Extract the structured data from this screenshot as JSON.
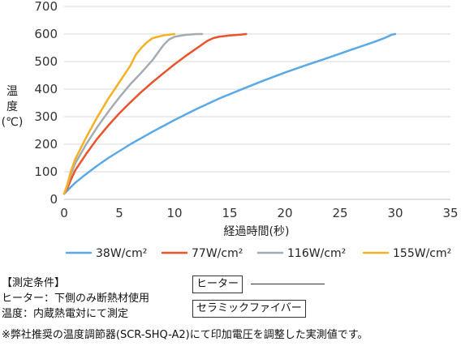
{
  "chart_data": {
    "type": "line",
    "xlabel": "経過時間(秒)",
    "ylabel": "温度(℃)",
    "ylabel_lines": [
      "温",
      "度",
      "(℃)"
    ],
    "xlim": [
      0,
      35
    ],
    "ylim": [
      0,
      700
    ],
    "xticks": [
      "0",
      "5",
      "10",
      "15",
      "20",
      "25",
      "30",
      "35"
    ],
    "yticks": [
      "0",
      "100",
      "200",
      "300",
      "400",
      "500",
      "600",
      "700"
    ],
    "grid": "horizontal",
    "legend": "bottom",
    "series": [
      {
        "name": "38W/cm²",
        "color": "#5aa9e6",
        "x": [
          0,
          0.5,
          1,
          2,
          3,
          4,
          5,
          6,
          8,
          10,
          12,
          14,
          16,
          18,
          20,
          22,
          24,
          26,
          28,
          29,
          29.7,
          30
        ],
        "y": [
          20,
          40,
          60,
          92,
          122,
          150,
          175,
          200,
          245,
          288,
          328,
          365,
          398,
          430,
          460,
          488,
          515,
          543,
          570,
          585,
          598,
          600
        ]
      },
      {
        "name": "77W/cm²",
        "color": "#e8542c",
        "x": [
          0,
          0.3,
          0.6,
          1,
          2,
          3,
          4,
          5,
          6,
          7,
          8,
          9,
          10,
          11,
          12,
          13,
          13.5,
          14,
          15,
          16,
          16.5
        ],
        "y": [
          20,
          40,
          70,
          105,
          165,
          220,
          268,
          312,
          352,
          390,
          425,
          458,
          490,
          520,
          548,
          576,
          585,
          590,
          595,
          598,
          600
        ]
      },
      {
        "name": "116W/cm²",
        "color": "#a2acb2",
        "x": [
          0,
          0.3,
          0.6,
          1,
          2,
          3,
          4,
          5,
          6,
          7,
          8,
          9,
          9.5,
          10,
          11,
          12,
          12.5
        ],
        "y": [
          20,
          50,
          90,
          130,
          200,
          262,
          318,
          370,
          418,
          460,
          505,
          560,
          580,
          590,
          597,
          600,
          600
        ]
      },
      {
        "name": "155W/cm²",
        "color": "#f5b023",
        "x": [
          0,
          0.3,
          0.6,
          1,
          2,
          3,
          4,
          5,
          6,
          6.5,
          7,
          7.5,
          8,
          8.5,
          9,
          9.5,
          10
        ],
        "y": [
          20,
          55,
          100,
          145,
          225,
          298,
          365,
          425,
          485,
          525,
          550,
          570,
          585,
          590,
          595,
          598,
          600
        ]
      }
    ]
  },
  "notes": {
    "heading": "【測定条件】",
    "heater": "ヒーター：下側のみ断熱材使用",
    "temperature": "温度：内蔵熱電対にて測定",
    "footnote": "※弊社推奨の温度調節器(SCR-SHQ-A2)にて印加電圧を調整した実測値です。"
  },
  "diagram": {
    "heater_label": "ヒーター",
    "ceramic_label": "セラミックファイバー"
  }
}
